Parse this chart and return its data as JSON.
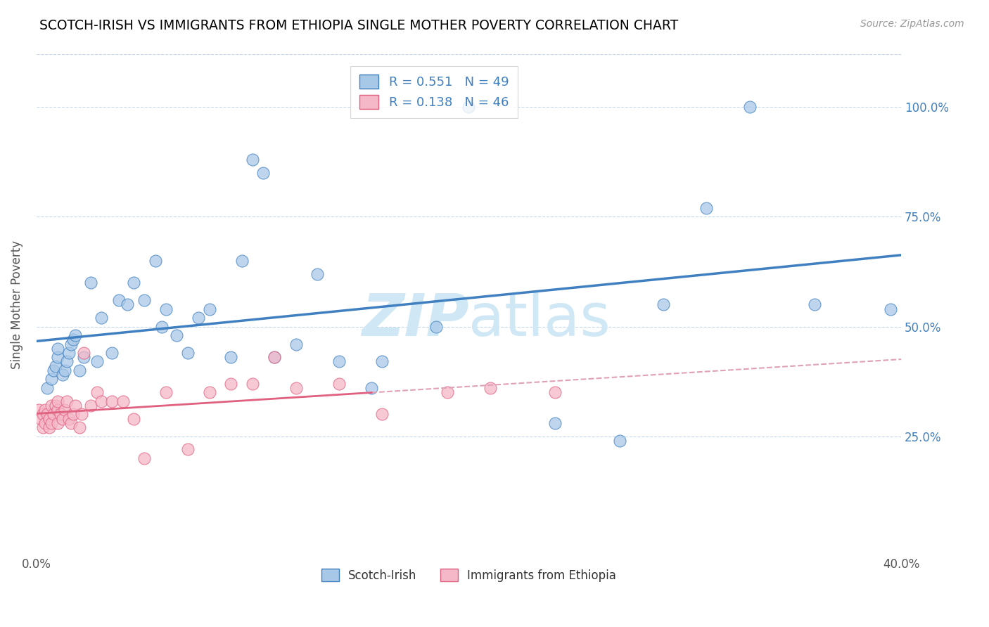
{
  "title": "SCOTCH-IRISH VS IMMIGRANTS FROM ETHIOPIA SINGLE MOTHER POVERTY CORRELATION CHART",
  "source": "Source: ZipAtlas.com",
  "ylabel": "Single Mother Poverty",
  "xlim": [
    0.0,
    0.4
  ],
  "ylim": [
    -0.02,
    1.12
  ],
  "legend_label1": "Scotch-Irish",
  "legend_label2": "Immigrants from Ethiopia",
  "R1": 0.551,
  "N1": 49,
  "R2": 0.138,
  "N2": 46,
  "color_blue": "#a8c8e8",
  "color_pink": "#f5b8c8",
  "color_blue_line": "#4080c0",
  "color_pink_line": "#e06080",
  "color_pink_dashed": "#e0a0b8",
  "watermark_color": "#d0e8f5",
  "scotch_irish_x": [
    0.005,
    0.007,
    0.008,
    0.009,
    0.01,
    0.01,
    0.012,
    0.013,
    0.014,
    0.015,
    0.016,
    0.017,
    0.018,
    0.02,
    0.022,
    0.025,
    0.028,
    0.03,
    0.035,
    0.038,
    0.042,
    0.045,
    0.05,
    0.055,
    0.058,
    0.06,
    0.065,
    0.07,
    0.075,
    0.08,
    0.09,
    0.095,
    0.1,
    0.105,
    0.11,
    0.12,
    0.13,
    0.14,
    0.155,
    0.16,
    0.185,
    0.2,
    0.24,
    0.27,
    0.29,
    0.31,
    0.33,
    0.36,
    0.395
  ],
  "scotch_irish_y": [
    0.36,
    0.38,
    0.4,
    0.41,
    0.43,
    0.45,
    0.39,
    0.4,
    0.42,
    0.44,
    0.46,
    0.47,
    0.48,
    0.4,
    0.43,
    0.6,
    0.42,
    0.52,
    0.44,
    0.56,
    0.55,
    0.6,
    0.56,
    0.65,
    0.5,
    0.54,
    0.48,
    0.44,
    0.52,
    0.54,
    0.43,
    0.65,
    0.88,
    0.85,
    0.43,
    0.46,
    0.62,
    0.42,
    0.36,
    0.42,
    0.5,
    1.0,
    0.28,
    0.24,
    0.55,
    0.77,
    1.0,
    0.55,
    0.54
  ],
  "ethiopia_x": [
    0.001,
    0.002,
    0.003,
    0.003,
    0.004,
    0.004,
    0.005,
    0.006,
    0.006,
    0.007,
    0.007,
    0.008,
    0.009,
    0.01,
    0.01,
    0.01,
    0.011,
    0.012,
    0.013,
    0.014,
    0.015,
    0.016,
    0.017,
    0.018,
    0.02,
    0.021,
    0.022,
    0.025,
    0.028,
    0.03,
    0.035,
    0.04,
    0.045,
    0.05,
    0.06,
    0.07,
    0.08,
    0.09,
    0.1,
    0.11,
    0.12,
    0.14,
    0.16,
    0.19,
    0.21,
    0.24
  ],
  "ethiopia_y": [
    0.31,
    0.29,
    0.27,
    0.3,
    0.28,
    0.31,
    0.3,
    0.27,
    0.29,
    0.28,
    0.32,
    0.3,
    0.32,
    0.28,
    0.31,
    0.33,
    0.3,
    0.29,
    0.31,
    0.33,
    0.29,
    0.28,
    0.3,
    0.32,
    0.27,
    0.3,
    0.44,
    0.32,
    0.35,
    0.33,
    0.33,
    0.33,
    0.29,
    0.2,
    0.35,
    0.22,
    0.35,
    0.37,
    0.37,
    0.43,
    0.36,
    0.37,
    0.3,
    0.35,
    0.36,
    0.35
  ],
  "ytick_positions": [
    0.25,
    0.5,
    0.75,
    1.0
  ],
  "ytick_labels": [
    "25.0%",
    "50.0%",
    "75.0%",
    "100.0%"
  ],
  "xtick_positions": [
    0.0,
    0.05,
    0.1,
    0.15,
    0.2,
    0.25,
    0.3,
    0.35,
    0.4
  ],
  "xtick_labels": [
    "0.0%",
    "",
    "",
    "",
    "",
    "",
    "",
    "",
    "40.0%"
  ]
}
